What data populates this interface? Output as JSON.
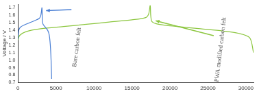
{
  "chart_data": {
    "type": "line",
    "y_label": "Voltage / V",
    "xlim": [
      0,
      31000
    ],
    "xticks": [
      0,
      5000,
      10000,
      15000,
      20000,
      25000,
      30000
    ],
    "ylim": [
      0.7,
      1.75
    ],
    "yticks": [
      0.7,
      0.8,
      0.9,
      {
        "value": 1.0,
        "label": "1.0"
      },
      1.1,
      1.2,
      1.3,
      1.4,
      1.5,
      1.6,
      1.7
    ],
    "grid": false,
    "series": [
      {
        "name": "Bare carbon felt",
        "color": "#4a7fd4",
        "x": [
          0,
          100,
          300,
          800,
          1500,
          2200,
          2800,
          3000,
          3150,
          3200,
          3300,
          3600,
          3900,
          4100,
          4250,
          4350,
          4420
        ],
        "values": [
          1.28,
          1.4,
          1.44,
          1.47,
          1.5,
          1.53,
          1.56,
          1.6,
          1.7,
          1.52,
          1.48,
          1.44,
          1.4,
          1.34,
          1.2,
          1.0,
          0.75
        ]
      },
      {
        "name": "PWA modified carbon felt",
        "color": "#8cc63f",
        "x": [
          0,
          200,
          1000,
          3000,
          6000,
          9000,
          12000,
          15000,
          16800,
          17200,
          17400,
          17600,
          18500,
          21000,
          24000,
          27000,
          29000,
          30500,
          31000
        ],
        "values": [
          1.27,
          1.33,
          1.38,
          1.42,
          1.45,
          1.48,
          1.51,
          1.54,
          1.57,
          1.62,
          1.73,
          1.52,
          1.48,
          1.45,
          1.42,
          1.39,
          1.36,
          1.3,
          1.1
        ]
      }
    ]
  }
}
